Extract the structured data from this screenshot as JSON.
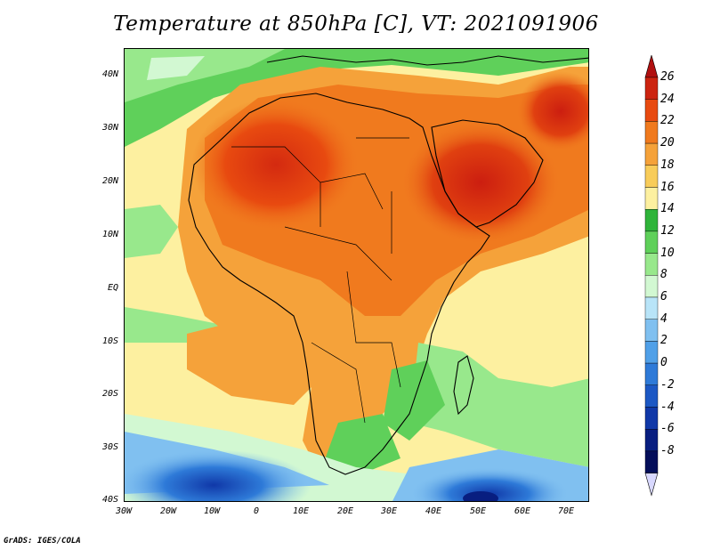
{
  "title": "Temperature at 850hPa [C], VT: 2021091906",
  "credit": "GrADS: IGES/COLA",
  "lat_ticks": [
    "40N",
    "30N",
    "20N",
    "10N",
    "EQ",
    "10S",
    "20S",
    "30S",
    "40S"
  ],
  "lon_ticks": [
    "30W",
    "20W",
    "10W",
    "0",
    "10E",
    "20E",
    "30E",
    "40E",
    "50E",
    "60E",
    "70E"
  ],
  "colorbar": {
    "labels": [
      "26",
      "24",
      "22",
      "20",
      "18",
      "16",
      "14",
      "12",
      "10",
      "8",
      "6",
      "4",
      "2",
      "0",
      "-2",
      "-4",
      "-6",
      "-8"
    ],
    "colors": [
      "#9c0e0e",
      "#cc2410",
      "#e84a10",
      "#f07a1e",
      "#f5a23a",
      "#f8cc5a",
      "#fdf0a0",
      "#2fb43a",
      "#5fd05a",
      "#98e88c",
      "#d2f8d2",
      "#b8e4f8",
      "#80c0f0",
      "#50a0e8",
      "#2e7ad8",
      "#1c58c4",
      "#1038a8",
      "#081e80",
      "#040e5a"
    ],
    "top_arrow_color": "#b01010",
    "bottom_arrow_color": "#d8d8ff"
  },
  "map": {
    "projection": "lat-lon",
    "lon_range": [
      -30,
      75
    ],
    "lat_range": [
      -40,
      45
    ],
    "field": "temperature at 850hPa",
    "units": "C"
  }
}
